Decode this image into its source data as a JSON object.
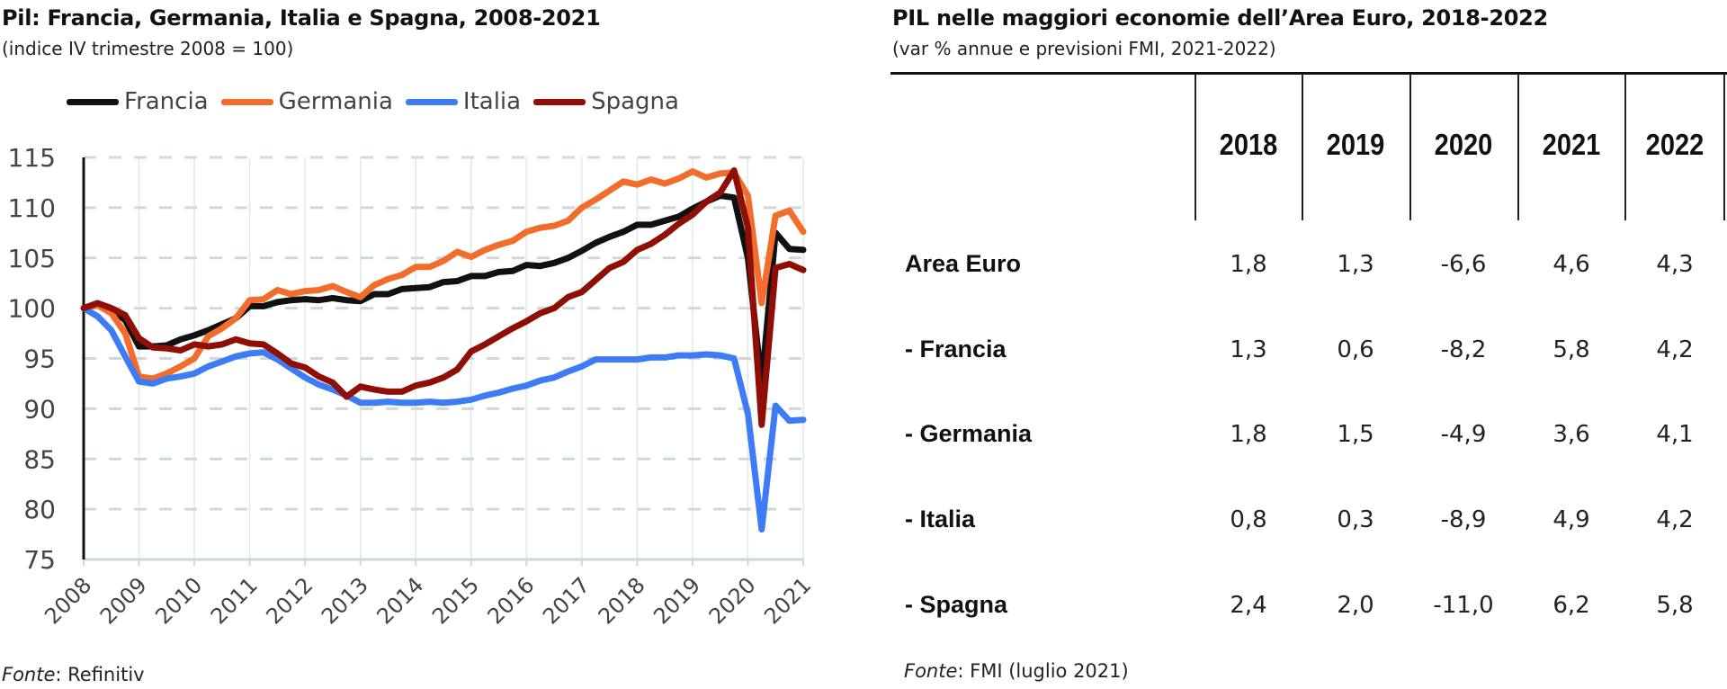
{
  "left": {
    "title": "Pil: Francia, Germania, Italia e Spagna, 2008-2021",
    "subtitle": "(indice IV trimestre 2008 = 100)",
    "source_label": "Fonte",
    "source_text": ": Refinitiv"
  },
  "right": {
    "title": "PIL nelle maggiori economie dell’Area Euro, 2018-2022",
    "subtitle": "(var % annue e previsioni FMI, 2021-2022)",
    "source_label": "Fonte",
    "source_text": ": FMI (luglio 2021)"
  },
  "chart_data": [
    {
      "type": "line",
      "title": "Pil: Francia, Germania, Italia e Spagna, 2008-2021",
      "subtitle": "(indice IV trimestre 2008 = 100)",
      "xlabel": "",
      "ylabel": "",
      "ylim": [
        75,
        115
      ],
      "yticks": [
        "75",
        "80",
        "85",
        "90",
        "95",
        "100",
        "105",
        "110",
        "115"
      ],
      "xticks": [
        "2008",
        "2009",
        "2010",
        "2011",
        "2012",
        "2013",
        "2014",
        "2015",
        "2016",
        "2017",
        "2018",
        "2019",
        "2020",
        "2021"
      ],
      "xlim": [
        2008,
        2021
      ],
      "x_start": 2008,
      "x_step": 0.25,
      "grid": true,
      "legend": "top",
      "series": [
        {
          "name": "Francia",
          "color": "#111111",
          "values": [
            100,
            100.4,
            99.9,
            98.8,
            96.2,
            96.2,
            96.3,
            96.9,
            97.3,
            97.8,
            98.4,
            99.0,
            100.2,
            100.2,
            100.6,
            100.8,
            100.9,
            100.8,
            101.0,
            100.8,
            100.7,
            101.4,
            101.4,
            101.9,
            102.0,
            102.1,
            102.6,
            102.7,
            103.2,
            103.2,
            103.6,
            103.7,
            104.3,
            104.2,
            104.5,
            105.0,
            105.7,
            106.5,
            107.1,
            107.6,
            108.3,
            108.3,
            108.7,
            109.1,
            109.9,
            110.6,
            111.2,
            111.0,
            105.0,
            92.5,
            107.5,
            105.9,
            105.8
          ]
        },
        {
          "name": "Germania",
          "color": "#f26d2b",
          "values": [
            100,
            100.3,
            99.5,
            97.5,
            93.2,
            93.0,
            93.5,
            94.2,
            95.0,
            97.2,
            98.0,
            99.0,
            100.8,
            100.9,
            101.8,
            101.4,
            101.7,
            101.8,
            102.2,
            101.6,
            101.1,
            102.3,
            102.9,
            103.3,
            104.1,
            104.1,
            104.7,
            105.6,
            105.1,
            105.8,
            106.3,
            106.7,
            107.6,
            108.0,
            108.2,
            108.7,
            110.0,
            110.8,
            111.7,
            112.6,
            112.3,
            112.8,
            112.4,
            112.9,
            113.6,
            113.0,
            113.4,
            113.5,
            111.2,
            100.5,
            109.2,
            109.7,
            107.6
          ]
        },
        {
          "name": "Italia",
          "color": "#3d7cf5",
          "values": [
            100,
            99.2,
            97.8,
            95.2,
            92.7,
            92.5,
            93.0,
            93.2,
            93.5,
            94.2,
            94.7,
            95.2,
            95.5,
            95.6,
            94.9,
            94.0,
            93.1,
            92.4,
            91.9,
            91.3,
            90.6,
            90.6,
            90.7,
            90.6,
            90.6,
            90.7,
            90.6,
            90.7,
            90.9,
            91.3,
            91.6,
            92.0,
            92.3,
            92.8,
            93.1,
            93.7,
            94.2,
            94.9,
            94.9,
            94.9,
            94.9,
            95.1,
            95.1,
            95.3,
            95.3,
            95.4,
            95.3,
            95.0,
            89.5,
            78.0,
            90.3,
            88.8,
            88.9
          ]
        },
        {
          "name": "Spagna",
          "color": "#8f0f07",
          "values": [
            100,
            100.5,
            100.0,
            99.3,
            97.0,
            96.1,
            96.0,
            95.8,
            96.4,
            96.2,
            96.4,
            96.9,
            96.5,
            96.4,
            95.5,
            94.5,
            94.1,
            93.2,
            92.6,
            91.2,
            92.2,
            91.9,
            91.7,
            91.7,
            92.3,
            92.6,
            93.1,
            93.9,
            95.7,
            96.4,
            97.2,
            98.0,
            98.7,
            99.5,
            100.0,
            101.1,
            101.6,
            102.8,
            104.0,
            104.6,
            105.8,
            106.4,
            107.3,
            108.4,
            109.3,
            110.6,
            111.5,
            113.7,
            108.0,
            88.4,
            104.0,
            104.4,
            103.8
          ]
        }
      ]
    },
    {
      "type": "table",
      "title": "PIL nelle maggiori economie dell’Area Euro, 2018-2022",
      "columns": [
        "2018",
        "2019",
        "2020",
        "2021",
        "2022"
      ],
      "rows": [
        {
          "label": "Area Euro",
          "values": [
            "1,8",
            "1,3",
            "-6,6",
            "4,6",
            "4,3"
          ]
        },
        {
          "label": "- Francia",
          "values": [
            "1,3",
            "0,6",
            "-8,2",
            "5,8",
            "4,2"
          ]
        },
        {
          "label": "- Germania",
          "values": [
            "1,8",
            "1,5",
            "-4,9",
            "3,6",
            "4,1"
          ]
        },
        {
          "label": "- Italia",
          "values": [
            "0,8",
            "0,3",
            "-8,9",
            "4,9",
            "4,2"
          ]
        },
        {
          "label": "- Spagna",
          "values": [
            "2,4",
            "2,0",
            "-11,0",
            "6,2",
            "5,8"
          ]
        }
      ]
    }
  ]
}
